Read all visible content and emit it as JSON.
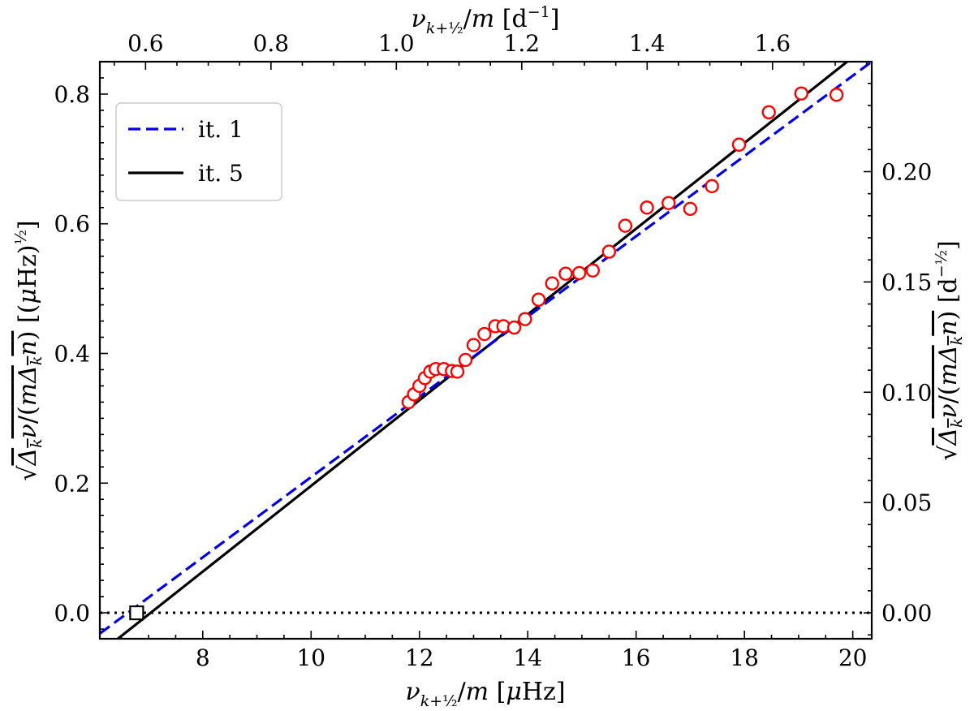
{
  "chart_data": {
    "type": "scatter",
    "title": "",
    "xlabel": "ν_{k+½}/m [μHz]",
    "ylabel": "√(Δ_k ν/(mΔ_k n)) [(μHz)^½]",
    "x2label": "ν_{k+½}/m [d⁻¹]",
    "y2label": "√(Δ_k ν/(mΔ_k n)) [d^-½]",
    "xlim": [
      6.1,
      20.35
    ],
    "ylim": [
      -0.04,
      0.85
    ],
    "x_ticks": [
      8,
      10,
      12,
      14,
      16,
      18,
      20
    ],
    "x_tick_labels": [
      "8",
      "10",
      "12",
      "14",
      "16",
      "18",
      "20"
    ],
    "y_ticks": [
      0.0,
      0.2,
      0.4,
      0.6,
      0.8
    ],
    "y_tick_labels": [
      "0.0",
      "0.2",
      "0.4",
      "0.6",
      "0.8"
    ],
    "x2_ticks": [
      0.6,
      0.8,
      1.0,
      1.2,
      1.4,
      1.6
    ],
    "x2_tick_labels": [
      "0.6",
      "0.8",
      "1.0",
      "1.2",
      "1.4",
      "1.6"
    ],
    "y2_ticks": [
      0.0,
      0.05,
      0.1,
      0.15,
      0.2
    ],
    "y2_tick_labels": [
      "0.00",
      "0.05",
      "0.10",
      "0.15",
      "0.20"
    ],
    "legend": {
      "placement": "top-left",
      "entries": [
        {
          "label": "it. 1",
          "style": "dashed",
          "color": "#0000ee"
        },
        {
          "label": "it. 5",
          "style": "solid",
          "color": "#000000"
        }
      ]
    },
    "series": [
      {
        "name": "observed",
        "kind": "scatter",
        "color": "#ff0000",
        "x": [
          11.8,
          11.9,
          12.0,
          12.1,
          12.2,
          12.3,
          12.45,
          12.6,
          12.7,
          12.85,
          13.0,
          13.2,
          13.4,
          13.55,
          13.75,
          13.95,
          14.2,
          14.45,
          14.7,
          14.95,
          15.2,
          15.5,
          15.8,
          16.2,
          16.6,
          17.0,
          17.4,
          17.9,
          18.45,
          19.05,
          19.7
        ],
        "y": [
          0.325,
          0.337,
          0.35,
          0.362,
          0.372,
          0.376,
          0.376,
          0.373,
          0.372,
          0.39,
          0.413,
          0.43,
          0.442,
          0.442,
          0.44,
          0.453,
          0.483,
          0.508,
          0.523,
          0.524,
          0.528,
          0.557,
          0.597,
          0.625,
          0.632,
          0.623,
          0.658,
          0.722,
          0.772,
          0.801,
          0.799
        ]
      },
      {
        "name": "it. 1",
        "kind": "line",
        "style": "dashed",
        "color": "#0000ee",
        "x": [
          6.1,
          20.35
        ],
        "y": [
          -0.032,
          0.85
        ]
      },
      {
        "name": "it. 5",
        "kind": "line",
        "style": "solid",
        "color": "#000000",
        "x": [
          6.1,
          20.35
        ],
        "y": [
          -0.062,
          0.88
        ]
      },
      {
        "name": "zero reference",
        "kind": "line",
        "style": "dotted",
        "color": "#000000",
        "x": [
          6.1,
          20.35
        ],
        "y": [
          0,
          0
        ]
      },
      {
        "name": "intercept",
        "kind": "marker",
        "marker": "square",
        "color": "#000000",
        "x": [
          6.78
        ],
        "y": [
          0.0
        ]
      }
    ]
  }
}
